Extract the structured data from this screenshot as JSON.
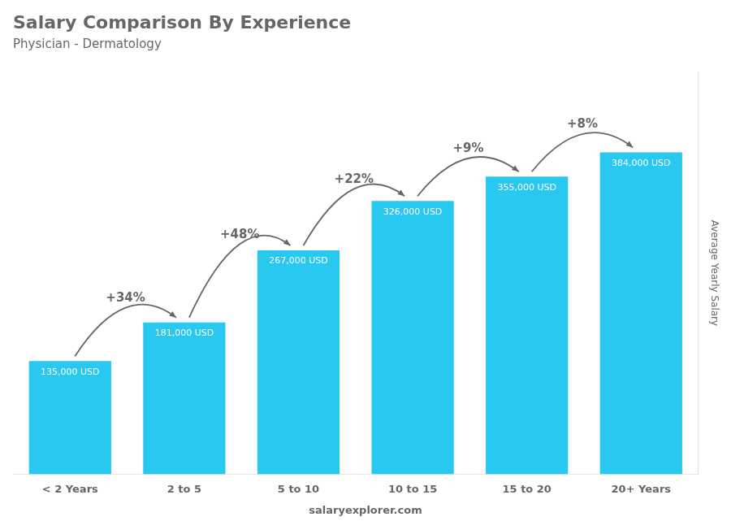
{
  "chart_data": {
    "type": "bar",
    "title": "Salary Comparison By Experience",
    "subtitle": "Physician - Dermatology",
    "categories": [
      "< 2 Years",
      "2 to 5",
      "5 to 10",
      "10 to 15",
      "15 to 20",
      "20+ Years"
    ],
    "values": [
      135000,
      181000,
      267000,
      326000,
      355000,
      384000
    ],
    "value_labels": [
      "135,000 USD",
      "181,000 USD",
      "267,000 USD",
      "326,000 USD",
      "355,000 USD",
      "384,000 USD"
    ],
    "data_labels": true,
    "color": "#29c8f0",
    "ylabel": "Average Yearly Salary",
    "ylim": [
      0,
      480000
    ],
    "yticks": [],
    "tick_labels": "x",
    "grid": false,
    "annotations": [
      "+34%",
      "+48%",
      "+22%",
      "+9%",
      "+8%"
    ],
    "watermark": "salaryexplorer.com"
  }
}
